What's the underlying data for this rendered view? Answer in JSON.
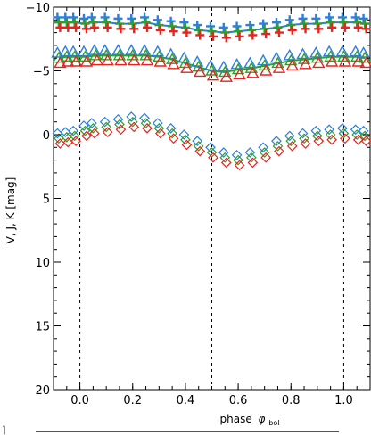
{
  "chart_data": {
    "type": "scatter",
    "xlabel": "phase",
    "xlabel_symbol": "φ",
    "xlabel_subscript": "bol",
    "ylabel": "V, J, K  [mag]",
    "xlim": [
      -0.1,
      1.1
    ],
    "ylim": [
      20,
      -10
    ],
    "y_inverted": true,
    "xticks": [
      0.0,
      0.2,
      0.4,
      0.6,
      0.8,
      1.0
    ],
    "xtick_labels": [
      "0.0",
      "0.2",
      "0.4",
      "0.6",
      "0.8",
      "1.0"
    ],
    "yticks": [
      -10,
      -5,
      0,
      5,
      10,
      15,
      20
    ],
    "ytick_labels": [
      "−10",
      "−5",
      "0",
      "5",
      "10",
      "15",
      "20"
    ],
    "vertical_reference_lines": [
      0.0,
      0.5,
      1.0
    ],
    "grid": false,
    "legend": "none",
    "series_colors": [
      "#2b7fe0",
      "#2ca02c",
      "#e8221e"
    ],
    "marker_groups": [
      {
        "marker": "plus",
        "x": [
          -0.08,
          -0.05,
          -0.02,
          0.02,
          0.05,
          0.1,
          0.15,
          0.2,
          0.25,
          0.3,
          0.35,
          0.4,
          0.45,
          0.5,
          0.55,
          0.6,
          0.65,
          0.7,
          0.75,
          0.8,
          0.85,
          0.9,
          0.95,
          1.0,
          1.05,
          1.08
        ],
        "y": [
          -8.8,
          -8.8,
          -8.8,
          -8.7,
          -8.8,
          -8.8,
          -8.7,
          -8.7,
          -8.8,
          -8.6,
          -8.5,
          -8.4,
          -8.2,
          -8.1,
          -8.0,
          -8.1,
          -8.2,
          -8.3,
          -8.4,
          -8.6,
          -8.7,
          -8.7,
          -8.8,
          -8.8,
          -8.8,
          -8.7
        ],
        "curve": "#2b7fe0"
      },
      {
        "marker": "triangle",
        "x": [
          -0.08,
          -0.05,
          -0.02,
          0.02,
          0.06,
          0.1,
          0.15,
          0.2,
          0.25,
          0.3,
          0.35,
          0.4,
          0.45,
          0.5,
          0.55,
          0.6,
          0.65,
          0.7,
          0.75,
          0.8,
          0.85,
          0.9,
          0.95,
          1.0,
          1.05,
          1.08
        ],
        "y": [
          -6.0,
          -6.1,
          -6.1,
          -6.1,
          -6.2,
          -6.2,
          -6.2,
          -6.2,
          -6.2,
          -6.1,
          -5.9,
          -5.6,
          -5.3,
          -5.0,
          -4.9,
          -5.1,
          -5.2,
          -5.4,
          -5.6,
          -5.8,
          -5.9,
          -6.0,
          -6.1,
          -6.1,
          -6.1,
          -6.0
        ],
        "curve": "#2ca02c"
      },
      {
        "marker": "diamond",
        "x": [
          -0.08,
          -0.05,
          -0.02,
          0.02,
          0.05,
          0.1,
          0.15,
          0.2,
          0.25,
          0.3,
          0.35,
          0.4,
          0.45,
          0.5,
          0.55,
          0.6,
          0.65,
          0.7,
          0.75,
          0.8,
          0.85,
          0.9,
          0.95,
          1.0,
          1.05,
          1.08
        ],
        "y": [
          0.3,
          0.2,
          0.1,
          -0.3,
          -0.5,
          -0.6,
          -0.8,
          -1.0,
          -0.9,
          -0.5,
          -0.1,
          0.4,
          0.9,
          1.4,
          1.8,
          2.0,
          1.8,
          1.4,
          0.9,
          0.5,
          0.3,
          0.1,
          0.0,
          -0.1,
          0.0,
          0.1
        ]
      }
    ]
  }
}
